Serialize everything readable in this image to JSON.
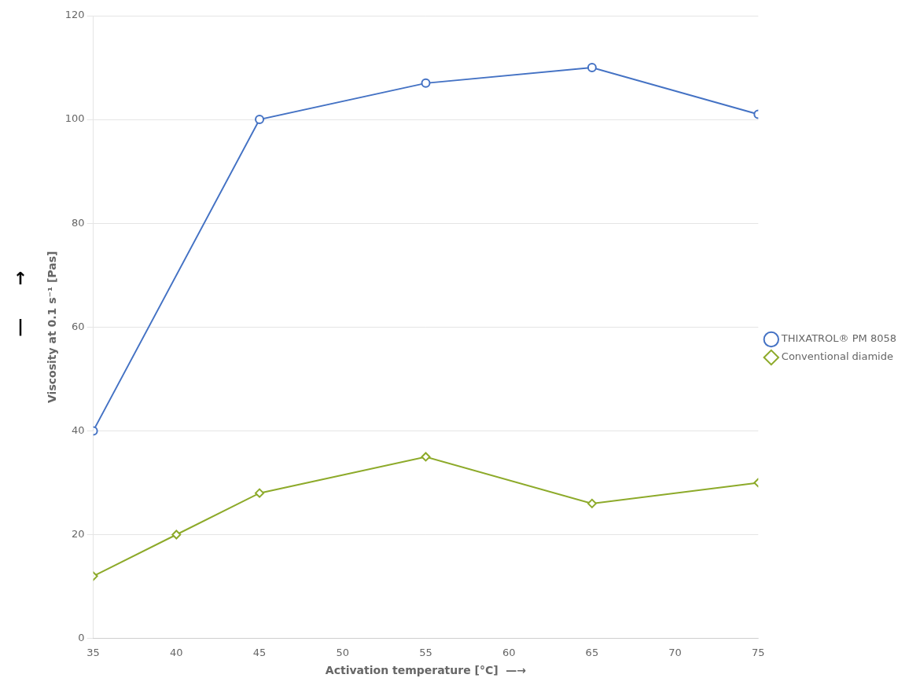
{
  "chart_data": {
    "type": "line",
    "x_label": "Activation temperature [°C]  —→",
    "y_label": "Viscosity at 0.1 s⁻¹ [Pas]",
    "series": [
      {
        "name": "THIXATROL® PM 8058",
        "color": "#4472C4",
        "marker": "circle",
        "x": [
          35,
          45,
          55,
          65,
          75
        ],
        "values": [
          40,
          100,
          107,
          110,
          101
        ]
      },
      {
        "name": "Conventional diamide",
        "color": "#8DAA2A",
        "marker": "diamond",
        "x": [
          35,
          40,
          45,
          55,
          65,
          75
        ],
        "values": [
          12,
          20,
          28,
          35,
          26,
          30
        ]
      }
    ],
    "xlim": [
      35,
      75
    ],
    "ylim": [
      0,
      120
    ],
    "xticks": [
      35,
      40,
      45,
      50,
      55,
      60,
      65,
      70,
      75
    ],
    "yticks": [
      0,
      20,
      40,
      60,
      80,
      100,
      120
    ],
    "grid": "y",
    "legend": "right",
    "annotations": [
      {
        "text": "↑"
      },
      {
        "text": "|"
      }
    ]
  }
}
